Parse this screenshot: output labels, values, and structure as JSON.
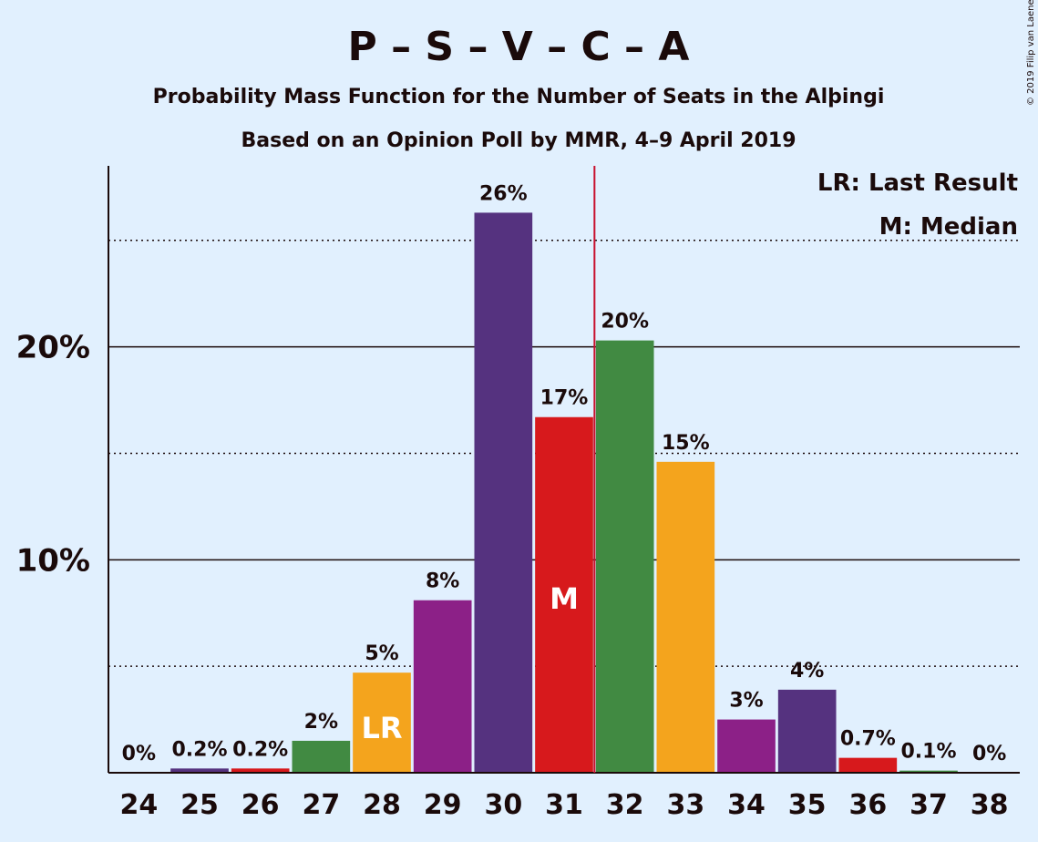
{
  "title": "P – S – V – C – A",
  "subtitle1": "Probability Mass Function for the Number of Seats in the Alþingi",
  "subtitle2": "Based on an Opinion Poll by MMR, 4–9 April 2019",
  "copyright": "© 2019 Filip van Laenen",
  "legend": {
    "lr": "LR: Last Result",
    "median": "M: Median"
  },
  "chart_data": {
    "type": "bar",
    "categories": [
      "24",
      "25",
      "26",
      "27",
      "28",
      "29",
      "30",
      "31",
      "32",
      "33",
      "34",
      "35",
      "36",
      "37",
      "38"
    ],
    "values": [
      0,
      0.2,
      0.2,
      1.5,
      4.7,
      8.1,
      26.3,
      16.7,
      20.3,
      14.6,
      2.5,
      3.9,
      0.7,
      0.1,
      0
    ],
    "labels": [
      "0%",
      "0.2%",
      "0.2%",
      "2%",
      "5%",
      "8%",
      "26%",
      "17%",
      "20%",
      "15%",
      "3%",
      "4%",
      "0.7%",
      "0.1%",
      "0%"
    ],
    "colors": [
      "#f4a41d",
      "#55327f",
      "#d7191c",
      "#418a42",
      "#f4a41d",
      "#8c2087",
      "#55327f",
      "#d7191c",
      "#418a42",
      "#f4a41d",
      "#8c2087",
      "#55327f",
      "#d7191c",
      "#418a42",
      "#f4a41d"
    ],
    "ylim": [
      0,
      28.5
    ],
    "yticks": [
      {
        "value": 10,
        "label": "10%"
      },
      {
        "value": 20,
        "label": "20%"
      }
    ],
    "minor_gridlines": [
      5,
      15,
      25
    ],
    "last_result_seat": "28",
    "last_result_marker": "LR",
    "median_seat": "31",
    "median_marker": "M",
    "majority_line_after_seat": "31",
    "majority_line_color": "#c8102e"
  }
}
